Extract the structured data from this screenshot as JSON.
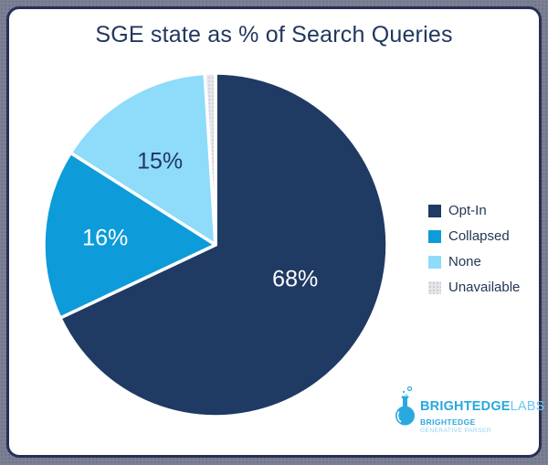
{
  "title": "SGE state as % of Search Queries",
  "chart_data": {
    "type": "pie",
    "title": "SGE state as % of Search Queries",
    "labels": [
      "Opt-In",
      "Collapsed",
      "None",
      "Unavailable"
    ],
    "values": [
      68,
      16,
      15,
      1
    ],
    "value_labels": [
      "68%",
      "16%",
      "15%",
      ""
    ],
    "colors": [
      "#1f3a63",
      "#0d9bd9",
      "#8edbfa",
      "#e4e6ea"
    ],
    "fill_styles": [
      "solid",
      "solid",
      "solid",
      "dotted"
    ],
    "data_label_colors": [
      "#ffffff",
      "#ffffff",
      "#21375f",
      ""
    ],
    "legend_position": "right",
    "start_angle": "12 o'clock",
    "direction": "clockwise",
    "slice_border_color": "#ffffff"
  },
  "logo": {
    "flask_icon": "flask-icon",
    "brand_bold": "BRIGHTEDGE",
    "brand_light": "LABS",
    "sub_bold": "BRIGHTEDGE",
    "sub_light": "GENERATIVE PARSER"
  },
  "colors": {
    "page_bg": "#7b8094",
    "page_bg_dot": "#6f7489",
    "card_border": "#293052",
    "title_text": "#21375f",
    "legend_text": "#233754",
    "logo_blue": "#29a9e0",
    "logo_light_blue": "#6cc6ee",
    "logo_sub_light": "#8fd2f2",
    "pattern_bg": "#e4e6ea",
    "pattern_dot": "#c7cbd3"
  }
}
